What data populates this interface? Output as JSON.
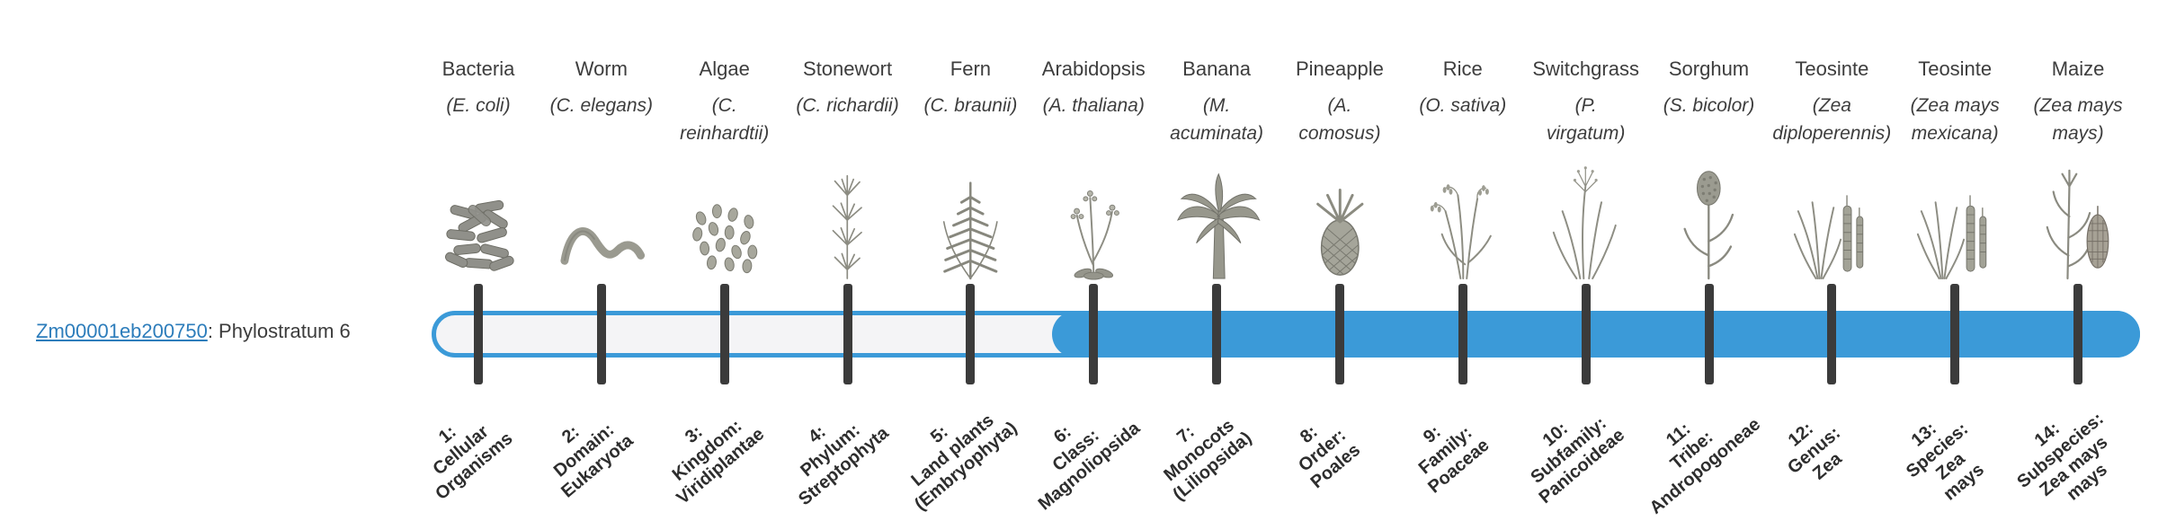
{
  "theme": {
    "accent_blue": "#3b9ad8",
    "track_fill": "#f4f4f6",
    "tick_color": "#3b3b3b",
    "link_blue": "#2d7dbb",
    "text_dark": "#3c3c3c"
  },
  "gene": {
    "id": "Zm00001eb200750",
    "suffix": ": Phylostratum 6",
    "phylostratum": 6
  },
  "bar": {
    "total_strata": 14,
    "highlight_from_stratum": 6
  },
  "organisms": [
    {
      "stratum": 1,
      "common_name": "Bacteria",
      "scientific_name_lines": [
        "(E. coli)"
      ],
      "icon": "bacteria-icon",
      "rank_label_lines": [
        "1:",
        "Cellular",
        "Organisms"
      ]
    },
    {
      "stratum": 2,
      "common_name": "Worm",
      "scientific_name_lines": [
        "(C. elegans)"
      ],
      "icon": "worm-icon",
      "rank_label_lines": [
        "2:",
        "Domain:",
        "Eukaryota"
      ]
    },
    {
      "stratum": 3,
      "common_name": "Algae",
      "scientific_name_lines": [
        "(C.",
        "reinhardtii)"
      ],
      "icon": "algae-icon",
      "rank_label_lines": [
        "3:",
        "Kingdom:",
        "Viridiplantae"
      ]
    },
    {
      "stratum": 4,
      "common_name": "Stonewort",
      "scientific_name_lines": [
        "(C. richardii)"
      ],
      "icon": "stonewort-icon",
      "rank_label_lines": [
        "4:",
        "Phylum:",
        "Streptophyta"
      ]
    },
    {
      "stratum": 5,
      "common_name": "Fern",
      "scientific_name_lines": [
        "(C. braunii)"
      ],
      "icon": "fern-icon",
      "rank_label_lines": [
        "5:",
        "Land plants",
        "(Embryophyta)"
      ]
    },
    {
      "stratum": 6,
      "common_name": "Arabidopsis",
      "scientific_name_lines": [
        "(A. thaliana)"
      ],
      "icon": "arabidopsis-icon",
      "rank_label_lines": [
        "6:",
        "Class:",
        "Magnoliopsida"
      ]
    },
    {
      "stratum": 7,
      "common_name": "Banana",
      "scientific_name_lines": [
        "(M.",
        "acuminata)"
      ],
      "icon": "banana-icon",
      "rank_label_lines": [
        "7:",
        "Monocots",
        "(Liliopsida)"
      ]
    },
    {
      "stratum": 8,
      "common_name": "Pineapple",
      "scientific_name_lines": [
        "(A.",
        "comosus)"
      ],
      "icon": "pineapple-icon",
      "rank_label_lines": [
        "8:",
        "Order:",
        "Poales"
      ]
    },
    {
      "stratum": 9,
      "common_name": "Rice",
      "scientific_name_lines": [
        "(O. sativa)"
      ],
      "icon": "rice-icon",
      "rank_label_lines": [
        "9:",
        "Family:",
        "Poaceae"
      ]
    },
    {
      "stratum": 10,
      "common_name": "Switchgrass",
      "scientific_name_lines": [
        "(P.",
        "virgatum)"
      ],
      "icon": "switchgrass-icon",
      "rank_label_lines": [
        "10:",
        "Subfamily:",
        "Panicoideae"
      ]
    },
    {
      "stratum": 11,
      "common_name": "Sorghum",
      "scientific_name_lines": [
        "(S. bicolor)"
      ],
      "icon": "sorghum-icon",
      "rank_label_lines": [
        "11:",
        "Tribe:",
        "Andropogoneae"
      ]
    },
    {
      "stratum": 12,
      "common_name": "Teosinte",
      "scientific_name_lines": [
        "(Zea",
        "diploperennis)"
      ],
      "icon": "teosinte-icon",
      "rank_label_lines": [
        "12:",
        "Genus:",
        "Zea"
      ]
    },
    {
      "stratum": 13,
      "common_name": "Teosinte",
      "scientific_name_lines": [
        "(Zea mays",
        "mexicana)"
      ],
      "icon": "teosinte-icon",
      "rank_label_lines": [
        "13:",
        "Species:",
        "Zea",
        "mays"
      ]
    },
    {
      "stratum": 14,
      "common_name": "Maize",
      "scientific_name_lines": [
        "(Zea mays",
        "mays)"
      ],
      "icon": "maize-icon",
      "rank_label_lines": [
        "14:",
        "Subspecies:",
        "Zea mays",
        "mays"
      ]
    }
  ]
}
